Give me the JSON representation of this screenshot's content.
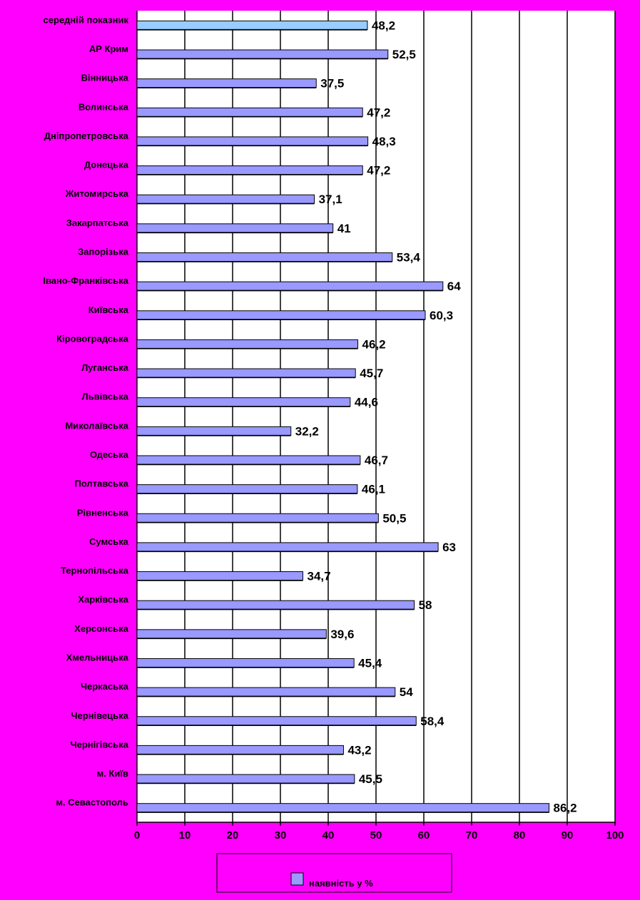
{
  "chart_data": {
    "type": "bar",
    "orientation": "horizontal",
    "title": "",
    "xlabel": "",
    "ylabel": "",
    "xlim": [
      0,
      100
    ],
    "x_ticks": [
      "0",
      "10",
      "20",
      "30",
      "40",
      "50",
      "60",
      "70",
      "80",
      "90",
      "100"
    ],
    "grid": "vertical gridlines",
    "legend_position": "bottom",
    "categories": [
      "середній показник",
      "АР Крим",
      "Вінницька",
      "Волинська",
      "Дніпропетровська",
      "Донецька",
      "Житомирська",
      "Закарпатська",
      "Запорізька",
      "Івано-Франківська",
      "Київська",
      "Кіровоградська",
      "Луганська",
      "Львівська",
      "Миколаївська",
      "Одеська",
      "Полтавська",
      "Рівненська",
      "Сумська",
      "Тернопільська",
      "Харківська",
      "Херсонська",
      "Хмельницька",
      "Черкаська",
      "Чернівецька",
      "Чернігівська",
      "м. Київ",
      "м. Севастополь"
    ],
    "series": [
      {
        "name": "наявність у %",
        "values": [
          48.2,
          52.5,
          37.5,
          47.2,
          48.3,
          47.2,
          37.1,
          41,
          53.4,
          64,
          60.3,
          46.2,
          45.7,
          44.6,
          32.2,
          46.7,
          46.1,
          50.5,
          63,
          34.7,
          58,
          39.6,
          45.4,
          54,
          58.4,
          43.2,
          45.5,
          86.2
        ],
        "value_labels": [
          "48,2",
          "52,5",
          "37,5",
          "47,2",
          "48,3",
          "47,2",
          "37,1",
          "41",
          "53,4",
          "64",
          "60,3",
          "46,2",
          "45,7",
          "44,6",
          "32,2",
          "46,7",
          "46,1",
          "50,5",
          "63",
          "34,7",
          "58",
          "39,6",
          "45,4",
          "54",
          "58,4",
          "43,2",
          "45,5",
          "86,2"
        ]
      }
    ],
    "colors": {
      "background": "#FF00FF",
      "plot_area": "#FFFFFF",
      "bar": "#9999FF",
      "highlight_bar": "#99CCFF",
      "gridline": "#000000"
    }
  }
}
